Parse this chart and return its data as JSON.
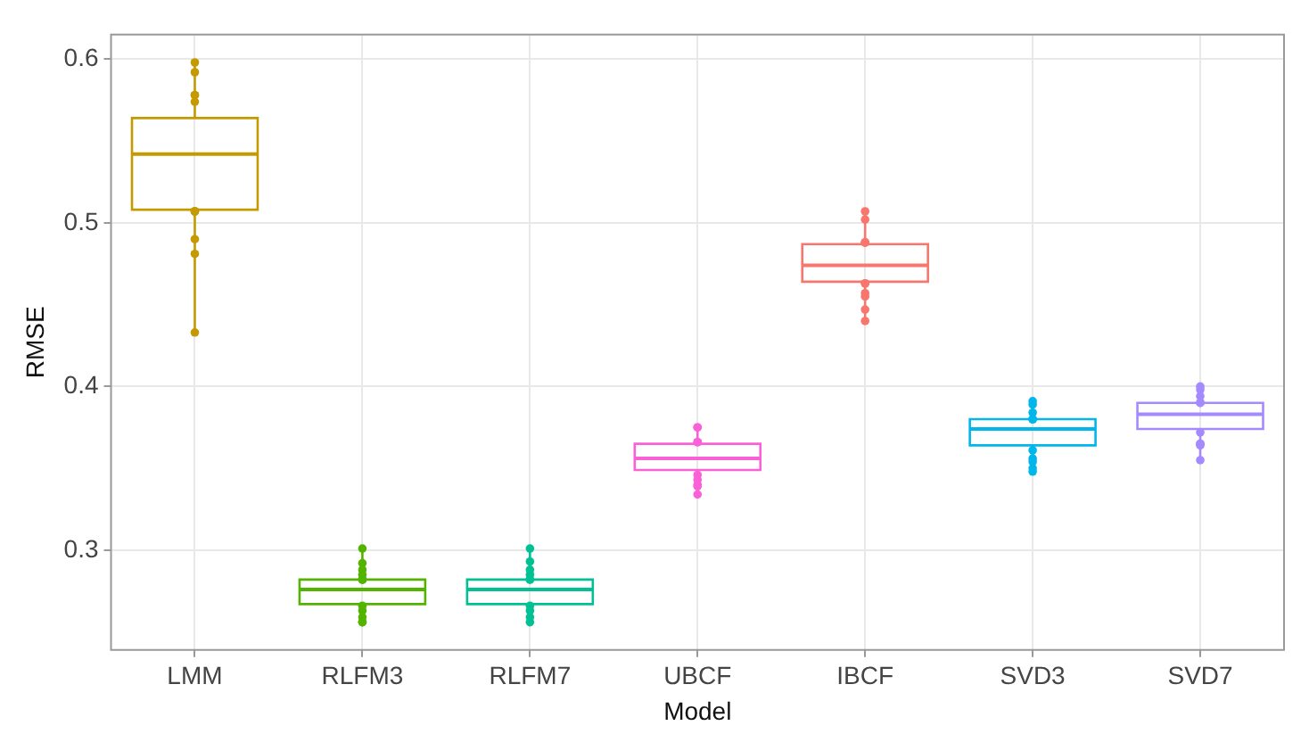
{
  "chart_data": {
    "type": "box",
    "xlabel": "Model",
    "ylabel": "RMSE",
    "categories": [
      "LMM",
      "RLFM3",
      "RLFM7",
      "UBCF",
      "IBCF",
      "SVD3",
      "SVD7"
    ],
    "colors": [
      "#c49a00",
      "#53b400",
      "#00c094",
      "#fb61d7",
      "#f8766d",
      "#00b6eb",
      "#a58aff"
    ],
    "boxes": [
      {
        "low": 0.433,
        "q1": 0.508,
        "median": 0.542,
        "q3": 0.564,
        "high": 0.597
      },
      {
        "low": 0.256,
        "q1": 0.267,
        "median": 0.276,
        "q3": 0.282,
        "high": 0.301
      },
      {
        "low": 0.256,
        "q1": 0.267,
        "median": 0.276,
        "q3": 0.282,
        "high": 0.301
      },
      {
        "low": 0.334,
        "q1": 0.349,
        "median": 0.356,
        "q3": 0.365,
        "high": 0.375
      },
      {
        "low": 0.44,
        "q1": 0.464,
        "median": 0.474,
        "q3": 0.487,
        "high": 0.506
      },
      {
        "low": 0.348,
        "q1": 0.364,
        "median": 0.374,
        "q3": 0.38,
        "high": 0.392
      },
      {
        "low": 0.355,
        "q1": 0.374,
        "median": 0.383,
        "q3": 0.39,
        "high": 0.4
      }
    ],
    "series": [
      {
        "type": "scatter",
        "x": [
          "LMM",
          "LMM",
          "LMM",
          "LMM",
          "LMM",
          "LMM",
          "LMM",
          "LMM",
          "LMM",
          "LMM",
          "LMM",
          "RLFM3",
          "RLFM3",
          "RLFM3",
          "RLFM3",
          "RLFM3",
          "RLFM3",
          "RLFM3",
          "RLFM3",
          "RLFM3",
          "RLFM3",
          "RLFM3",
          "RLFM3",
          "RLFM7",
          "RLFM7",
          "RLFM7",
          "RLFM7",
          "RLFM7",
          "RLFM7",
          "RLFM7",
          "RLFM7",
          "RLFM7",
          "RLFM7",
          "UBCF",
          "UBCF",
          "UBCF",
          "UBCF",
          "UBCF",
          "UBCF",
          "UBCF",
          "UBCF",
          "UBCF",
          "IBCF",
          "IBCF",
          "IBCF",
          "IBCF",
          "IBCF",
          "IBCF",
          "IBCF",
          "IBCF",
          "IBCF",
          "IBCF",
          "IBCF",
          "SVD3",
          "SVD3",
          "SVD3",
          "SVD3",
          "SVD3",
          "SVD3",
          "SVD3",
          "SVD3",
          "SVD3",
          "SVD3",
          "SVD3",
          "SVD7",
          "SVD7",
          "SVD7",
          "SVD7",
          "SVD7",
          "SVD7",
          "SVD7",
          "SVD7",
          "SVD7",
          "SVD7"
        ],
        "values": [
          0.598,
          0.592,
          0.578,
          0.578,
          0.574,
          0.507,
          0.507,
          0.507,
          0.49,
          0.481,
          0.433,
          0.301,
          0.292,
          0.288,
          0.285,
          0.282,
          0.282,
          0.282,
          0.266,
          0.263,
          0.259,
          0.256,
          0.256,
          0.301,
          0.293,
          0.288,
          0.285,
          0.282,
          0.282,
          0.266,
          0.263,
          0.259,
          0.256,
          0.375,
          0.375,
          0.366,
          0.366,
          0.346,
          0.343,
          0.34,
          0.339,
          0.334,
          0.507,
          0.502,
          0.488,
          0.488,
          0.488,
          0.463,
          0.463,
          0.457,
          0.455,
          0.447,
          0.44,
          0.391,
          0.389,
          0.384,
          0.38,
          0.38,
          0.38,
          0.361,
          0.356,
          0.354,
          0.35,
          0.348,
          0.4,
          0.398,
          0.394,
          0.39,
          0.39,
          0.372,
          0.365,
          0.365,
          0.364,
          0.355
        ],
        "colors": [
          "#c49a00",
          "#c49a00",
          "#c49a00",
          "#c49a00",
          "#c49a00",
          "#c49a00",
          "#c49a00",
          "#c49a00",
          "#c49a00",
          "#c49a00",
          "#c49a00",
          "#53b400",
          "#53b400",
          "#53b400",
          "#53b400",
          "#53b400",
          "#53b400",
          "#53b400",
          "#53b400",
          "#53b400",
          "#53b400",
          "#53b400",
          "#53b400",
          "#00c094",
          "#00c094",
          "#00c094",
          "#00c094",
          "#00c094",
          "#00c094",
          "#00c094",
          "#00c094",
          "#00c094",
          "#00c094",
          "#fb61d7",
          "#fb61d7",
          "#fb61d7",
          "#fb61d7",
          "#fb61d7",
          "#fb61d7",
          "#fb61d7",
          "#fb61d7",
          "#fb61d7",
          "#f8766d",
          "#f8766d",
          "#f8766d",
          "#f8766d",
          "#f8766d",
          "#f8766d",
          "#f8766d",
          "#f8766d",
          "#f8766d",
          "#f8766d",
          "#f8766d",
          "#00b6eb",
          "#00b6eb",
          "#00b6eb",
          "#00b6eb",
          "#00b6eb",
          "#00b6eb",
          "#00b6eb",
          "#00b6eb",
          "#00b6eb",
          "#00b6eb",
          "#00b6eb",
          "#a58aff",
          "#a58aff",
          "#a58aff",
          "#a58aff",
          "#a58aff",
          "#a58aff",
          "#a58aff",
          "#a58aff",
          "#a58aff",
          "#a58aff"
        ],
        "marker": "circle"
      }
    ],
    "ylim": [
      0.239,
      0.615
    ],
    "yticks": [
      0.3,
      0.4,
      0.5,
      0.6
    ],
    "grid": true
  }
}
